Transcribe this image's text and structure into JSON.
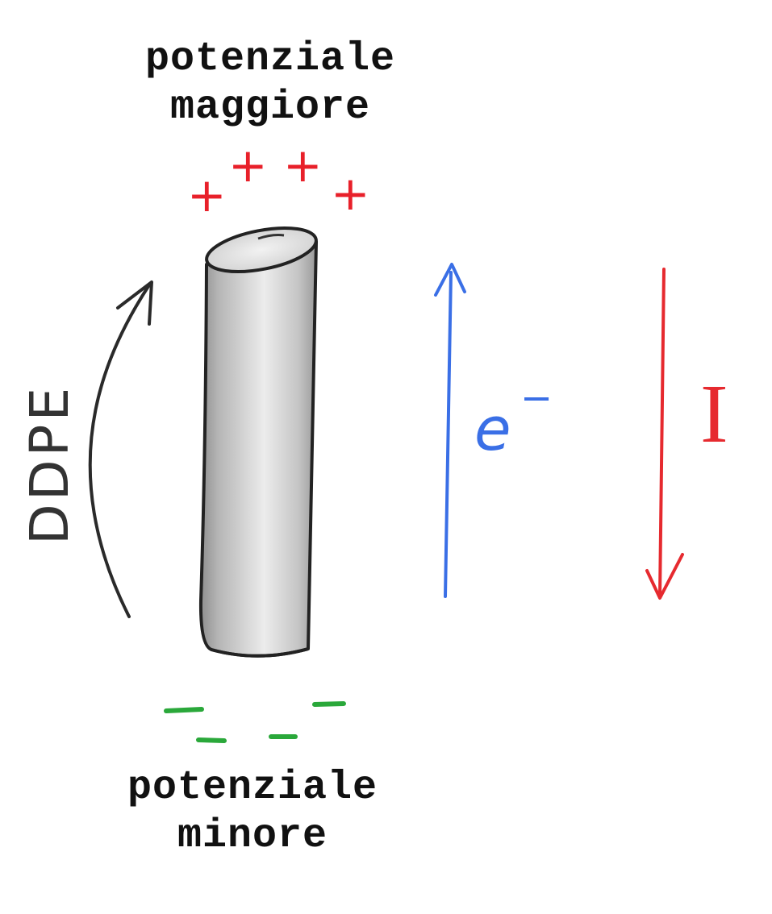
{
  "labels": {
    "top_line1": "potenziale",
    "top_line2": "maggiore",
    "bottom_line1": "potenziale",
    "bottom_line2": "minore",
    "ddpe": "DDPE",
    "electron": "e",
    "electron_sup": "−",
    "current": "I"
  },
  "symbols": {
    "positive_charge": "+",
    "negative_charge": "−"
  },
  "colors": {
    "ink": "#111111",
    "positive": "#e8202a",
    "negative": "#2aa83a",
    "electron": "#3a6fe6",
    "current": "#e62a2f",
    "conductor_light": "#e6e6e6",
    "conductor_dark": "#8a8a8a"
  }
}
